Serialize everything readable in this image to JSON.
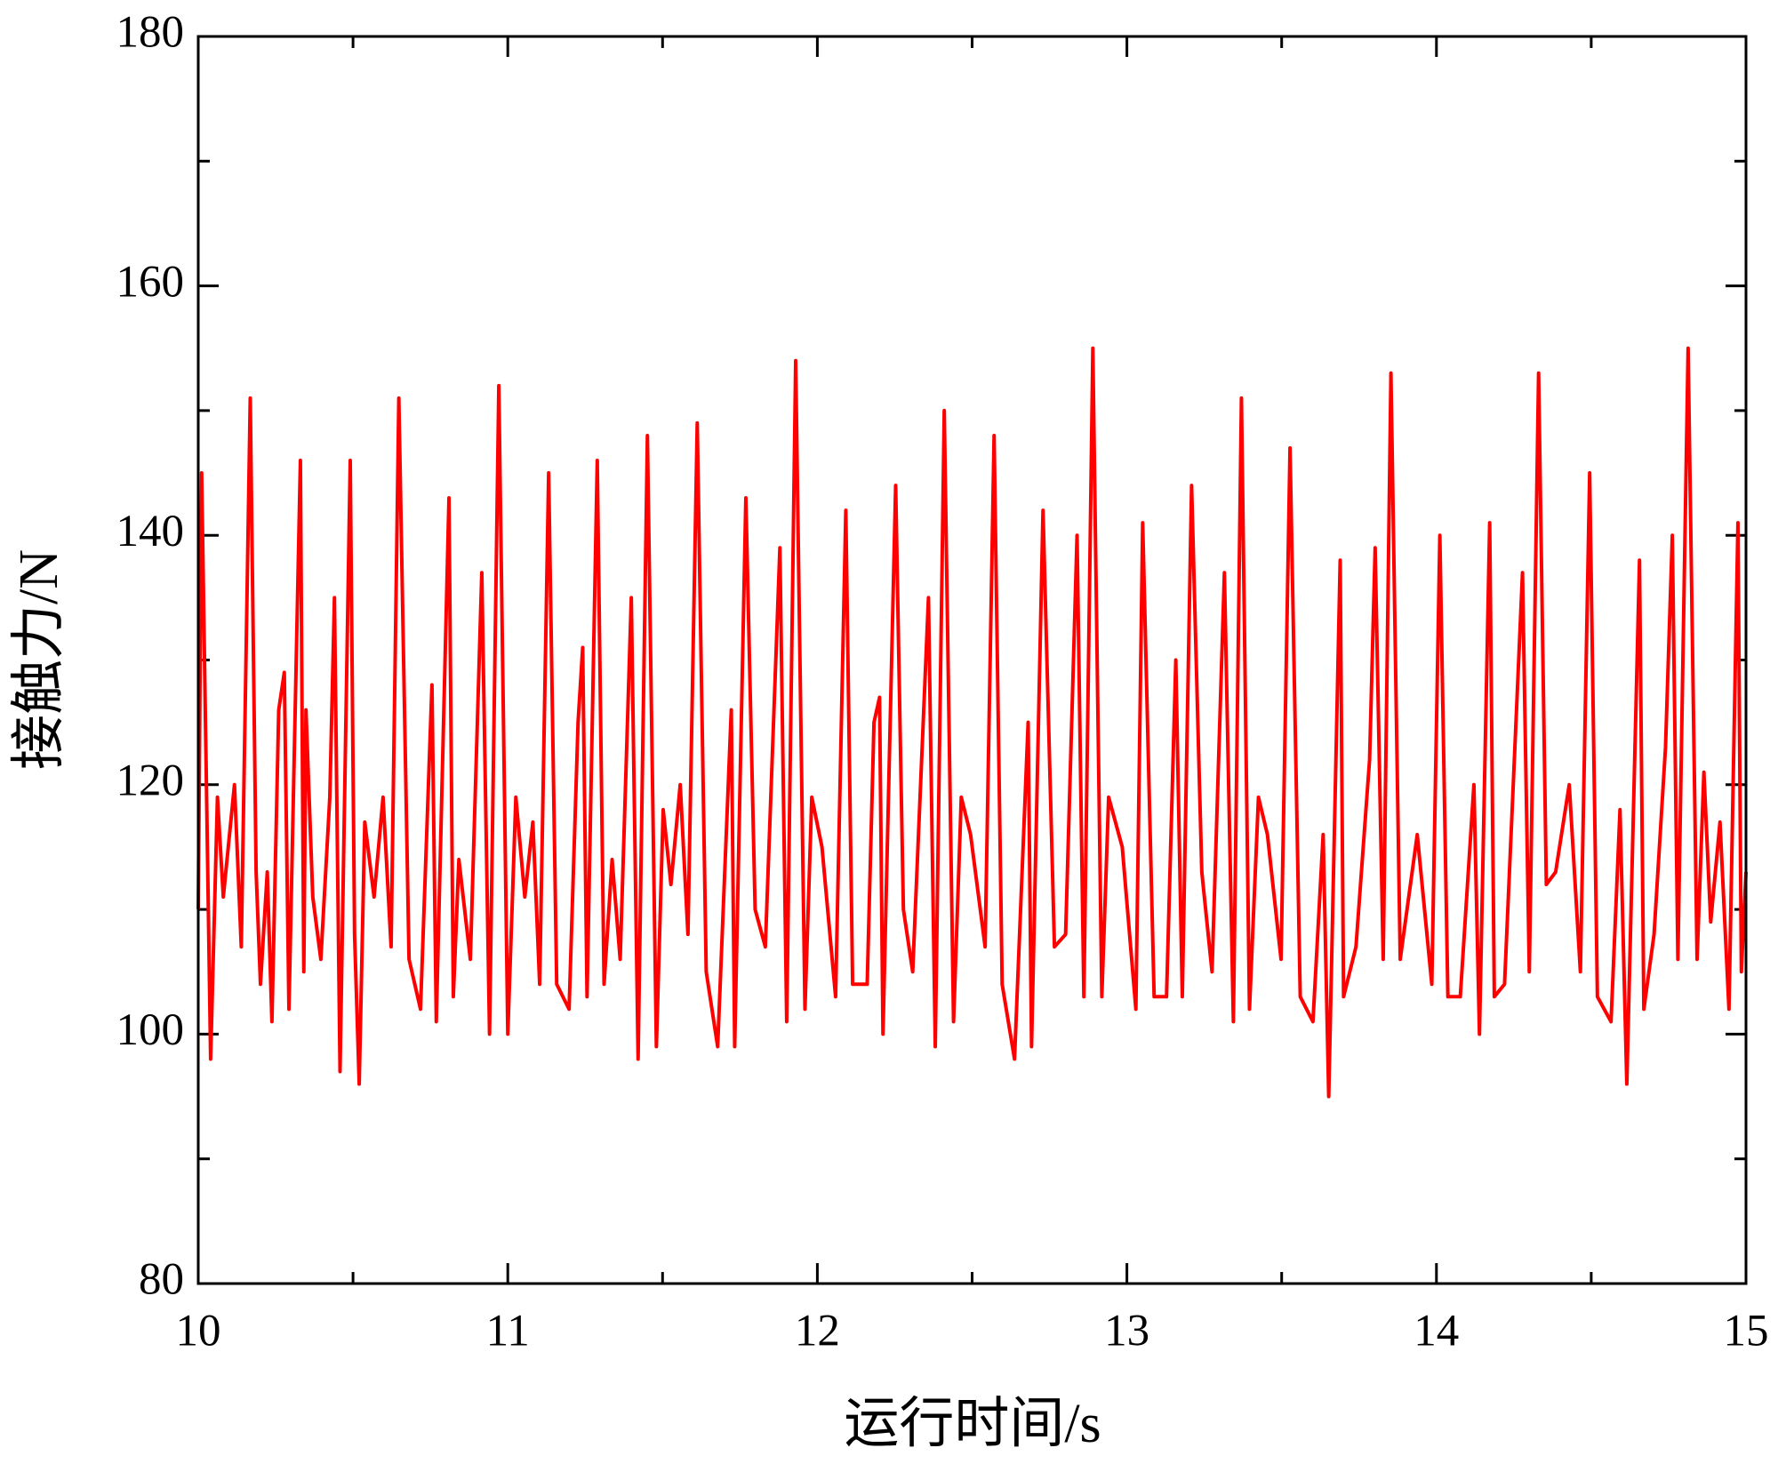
{
  "chart_data": {
    "type": "line",
    "xlabel": "运行时间/s",
    "ylabel": "接触力/N",
    "xlim": [
      10,
      15
    ],
    "xticks": [
      10,
      11,
      12,
      13,
      14,
      15
    ],
    "ylim": [
      80,
      180
    ],
    "yticks": [
      80,
      100,
      120,
      140,
      160,
      180
    ],
    "x": [
      10.0,
      10.011,
      10.04,
      10.062,
      10.081,
      10.117,
      10.139,
      10.168,
      10.187,
      10.201,
      10.223,
      10.238,
      10.26,
      10.278,
      10.293,
      10.33,
      10.341,
      10.348,
      10.37,
      10.396,
      10.425,
      10.44,
      10.458,
      10.491,
      10.505,
      10.52,
      10.538,
      10.568,
      10.597,
      10.623,
      10.648,
      10.681,
      10.718,
      10.755,
      10.769,
      10.81,
      10.824,
      10.842,
      10.879,
      10.916,
      10.941,
      10.971,
      11.0,
      11.026,
      11.055,
      11.081,
      11.103,
      11.132,
      11.158,
      11.198,
      11.227,
      11.242,
      11.256,
      11.289,
      11.311,
      11.337,
      11.363,
      11.399,
      11.421,
      11.451,
      11.48,
      11.502,
      11.527,
      11.557,
      11.582,
      11.612,
      11.641,
      11.678,
      11.722,
      11.733,
      11.769,
      11.799,
      11.832,
      11.879,
      11.901,
      11.93,
      11.96,
      11.982,
      12.015,
      12.059,
      12.092,
      12.114,
      12.161,
      12.183,
      12.201,
      12.212,
      12.253,
      12.278,
      12.308,
      12.359,
      12.381,
      12.41,
      12.44,
      12.465,
      12.495,
      12.542,
      12.571,
      12.597,
      12.637,
      12.681,
      12.692,
      12.729,
      12.766,
      12.802,
      12.839,
      12.861,
      12.89,
      12.919,
      12.941,
      12.985,
      13.029,
      13.051,
      13.088,
      13.128,
      13.158,
      13.179,
      13.209,
      13.242,
      13.275,
      13.315,
      13.344,
      13.37,
      13.396,
      13.425,
      13.454,
      13.498,
      13.527,
      13.56,
      13.601,
      13.634,
      13.652,
      13.689,
      13.7,
      13.74,
      13.784,
      13.802,
      13.828,
      13.853,
      13.883,
      13.938,
      13.985,
      14.011,
      14.037,
      14.077,
      14.121,
      14.139,
      14.172,
      14.187,
      14.22,
      14.278,
      14.3,
      14.33,
      14.355,
      14.385,
      14.429,
      14.465,
      14.495,
      14.52,
      14.564,
      14.593,
      14.615,
      14.656,
      14.67,
      14.703,
      14.74,
      14.762,
      14.78,
      14.813,
      14.842,
      14.864,
      14.886,
      14.916,
      14.945,
      14.974,
      14.985,
      15.0
    ],
    "series": [
      {
        "name": "接触力",
        "color": "#ff0000",
        "values": [
          110,
          145,
          98,
          119,
          111,
          120,
          107,
          151,
          113,
          104,
          113,
          101,
          126,
          129,
          102,
          146,
          105,
          126,
          111,
          106,
          119,
          135,
          97,
          146,
          108,
          96,
          117,
          111,
          119,
          107,
          151,
          106,
          102,
          128,
          101,
          143,
          103,
          114,
          106,
          137,
          100,
          152,
          100,
          119,
          111,
          117,
          104,
          145,
          104,
          102,
          125,
          131,
          103,
          146,
          104,
          114,
          106,
          135,
          98,
          148,
          99,
          118,
          112,
          120,
          108,
          149,
          105,
          99,
          126,
          99,
          143,
          110,
          107,
          139,
          101,
          154,
          102,
          119,
          115,
          103,
          142,
          104,
          104,
          125,
          127,
          100,
          144,
          110,
          105,
          135,
          99,
          150,
          101,
          119,
          116,
          107,
          148,
          104,
          98,
          125,
          99,
          142,
          107,
          108,
          140,
          103,
          155,
          103,
          119,
          115,
          102,
          141,
          103,
          103,
          130,
          103,
          144,
          113,
          105,
          137,
          101,
          151,
          102,
          119,
          116,
          106,
          147,
          103,
          101,
          116,
          95,
          138,
          103,
          107,
          122,
          139,
          106,
          153,
          106,
          116,
          104,
          140,
          103,
          103,
          120,
          100,
          141,
          103,
          104,
          137,
          105,
          153,
          112,
          113,
          120,
          105,
          145,
          103,
          101,
          118,
          96,
          138,
          102,
          108,
          123,
          140,
          106,
          155,
          106,
          121,
          109,
          117,
          102,
          141,
          105,
          113
        ]
      }
    ]
  }
}
